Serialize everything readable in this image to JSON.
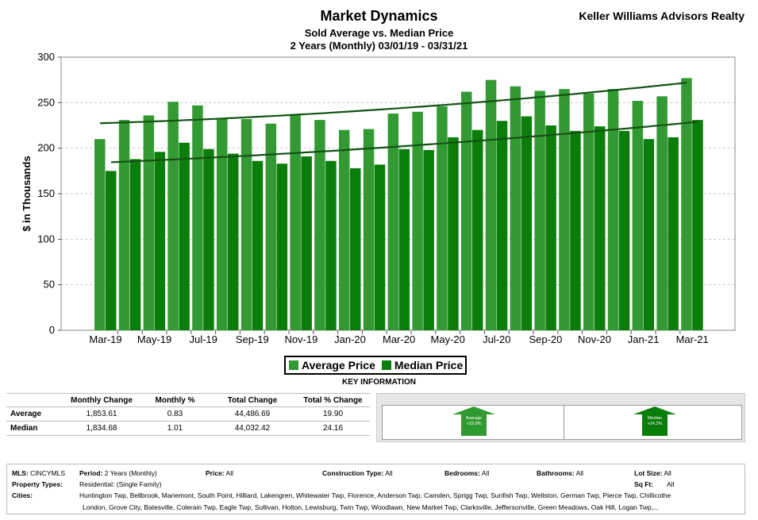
{
  "header": {
    "title": "Market Dynamics",
    "subtitle1": "Sold Average vs. Median Price",
    "subtitle2": "2 Years (Monthly) 03/01/19 - 03/31/21",
    "company": "Keller Williams Advisors Realty"
  },
  "colors": {
    "average": "#339933",
    "median": "#0a7d0a",
    "trend": "#145214"
  },
  "chart_data": {
    "type": "bar",
    "ylabel": "$ in Thousands",
    "ylim": [
      0,
      300
    ],
    "yticks": [
      0,
      50,
      100,
      150,
      200,
      250,
      300
    ],
    "grid": true,
    "legend_position": "bottom",
    "categories": [
      "Mar-19",
      "Apr-19",
      "May-19",
      "Jun-19",
      "Jul-19",
      "Aug-19",
      "Sep-19",
      "Oct-19",
      "Nov-19",
      "Dec-19",
      "Jan-20",
      "Feb-20",
      "Mar-20",
      "Apr-20",
      "May-20",
      "Jun-20",
      "Jul-20",
      "Aug-20",
      "Sep-20",
      "Oct-20",
      "Nov-20",
      "Dec-20",
      "Jan-21",
      "Feb-21",
      "Mar-21"
    ],
    "xtick_labels": [
      "Mar-19",
      "May-19",
      "Jul-19",
      "Sep-19",
      "Nov-19",
      "Jan-20",
      "Mar-20",
      "May-20",
      "Jul-20",
      "Sep-20",
      "Nov-20",
      "Jan-21",
      "Mar-21"
    ],
    "series": [
      {
        "name": "Average Price",
        "values": [
          210,
          231,
          236,
          251,
          247,
          233,
          232,
          227,
          236,
          231,
          220,
          221,
          238,
          240,
          246,
          262,
          275,
          268,
          263,
          265,
          260,
          265,
          252,
          257,
          277
        ]
      },
      {
        "name": "Median Price",
        "values": [
          175,
          188,
          196,
          206,
          199,
          194,
          186,
          183,
          191,
          186,
          178,
          182,
          199,
          198,
          212,
          220,
          230,
          235,
          225,
          219,
          224,
          219,
          210,
          212,
          231
        ]
      }
    ]
  },
  "legend": {
    "average": "Average Price",
    "median": "Median Price"
  },
  "key_info": {
    "title": "KEY INFORMATION",
    "headers": [
      "",
      "Monthly Change",
      "Monthly %",
      "Total Change",
      "Total % Change"
    ],
    "rows": [
      {
        "label": "Average",
        "monthly_change": "1,853.61",
        "monthly_pct": "0.83",
        "total_change": "44,486.69",
        "total_pct": "19.90"
      },
      {
        "label": "Median",
        "monthly_change": "1,834.68",
        "monthly_pct": "1.01",
        "total_change": "44,032.42",
        "total_pct": "24.16"
      }
    ],
    "arrows": [
      {
        "label": "Average",
        "value": "+19.9%"
      },
      {
        "label": "Median",
        "value": "+24.2%"
      }
    ]
  },
  "footer": {
    "mls_label": "MLS:",
    "mls": "CINCYMLS",
    "period_label": "Period:",
    "period": "2 Years (Monthly)",
    "price_label": "Price:",
    "price": "All",
    "construction_label": "Construction Type:",
    "construction": "All",
    "bedrooms_label": "Bedrooms:",
    "bedrooms": "All",
    "bathrooms_label": "Bathrooms:",
    "bathrooms": "All",
    "lotsize_label": "Lot Size:",
    "lotsize": "All",
    "proptypes_label": "Property Types:",
    "proptypes": "Residential: (Single Family)",
    "sqft_label": "Sq Ft:",
    "sqft": "All",
    "cities_label": "Cities:",
    "cities_line1": "Huntington Twp, Bellbrook, Mariemont, South Point, Hilliard, Lakengren, Whitewater Twp, Florence, Anderson Twp, Camden, Sprigg Twp, Sunfish Twp, Wellston, German Twp, Pierce Twp, Chillicothe",
    "cities_line2": "London, Grove City, Batesville, Colerain Twp, Eagle Twp, Sullivan, Holton, Lewisburg, Twin Twp, Woodlawn, New Market Twp, Clarksville, Jeffersonville, Green Meadows, Oak Hill, Logan Twp,..."
  }
}
